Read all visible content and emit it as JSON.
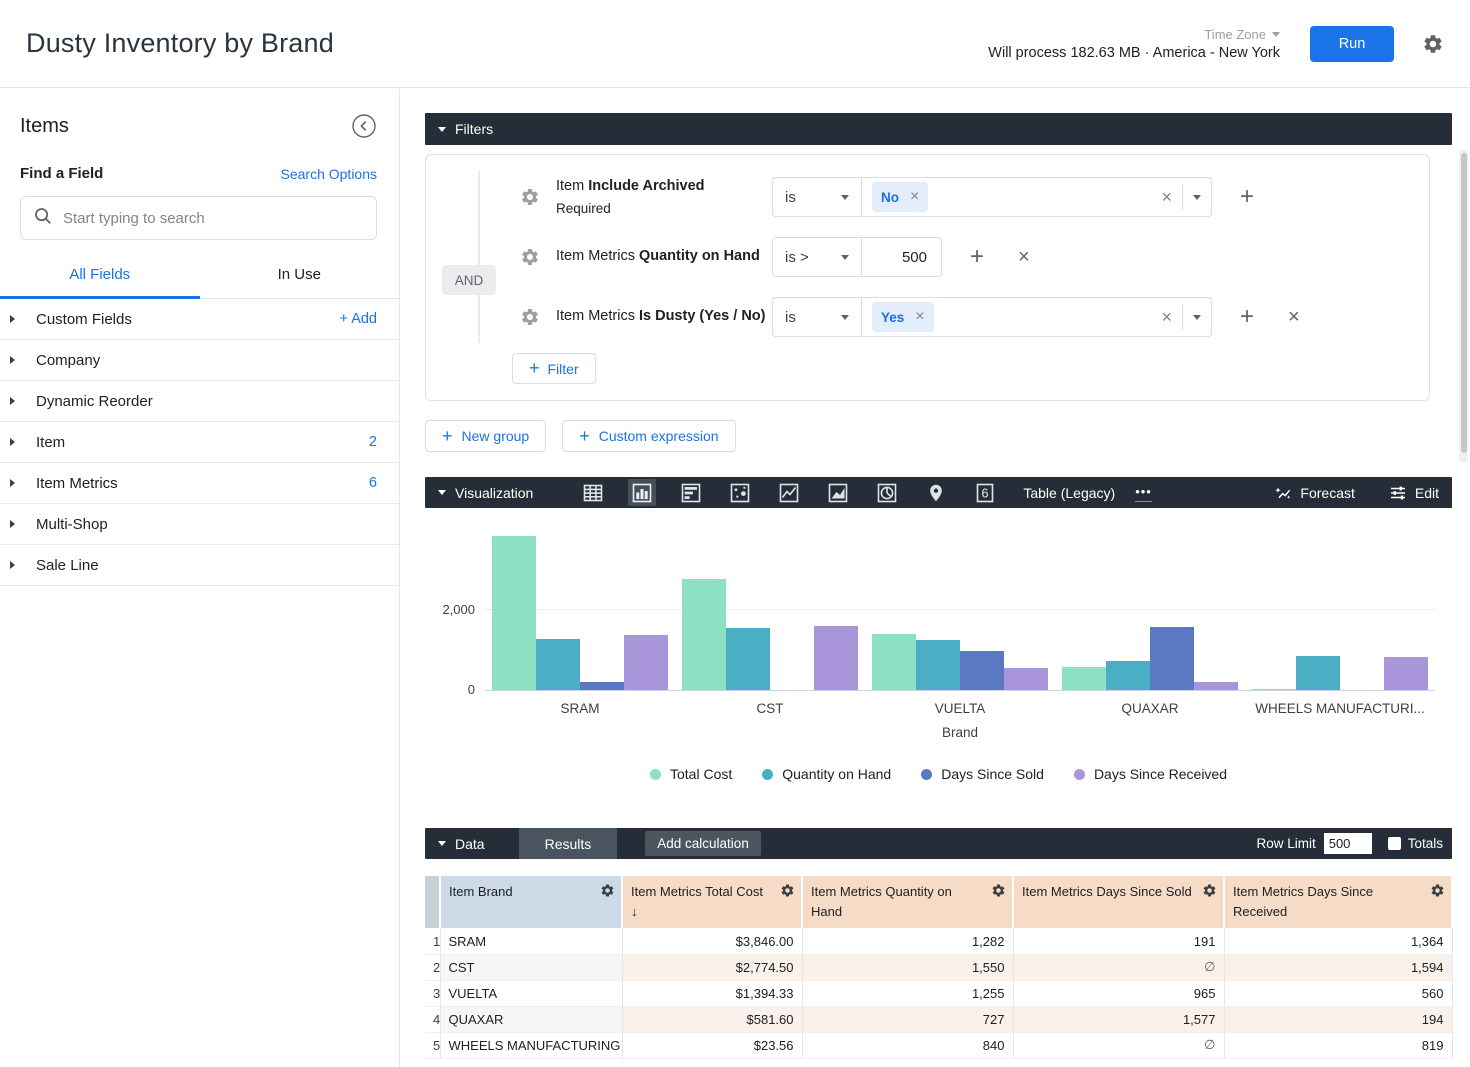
{
  "header": {
    "title": "Dusty Inventory by Brand",
    "time_zone_label": "Time Zone",
    "process_text": "Will process 182.63 MB · America - New York",
    "run_label": "Run"
  },
  "sidebar": {
    "title": "Items",
    "find_a_field_label": "Find a Field",
    "search_options_label": "Search Options",
    "search_placeholder": "Start typing to search",
    "tabs": {
      "all_fields": "All Fields",
      "in_use": "In Use"
    },
    "groups": [
      {
        "label": "Custom Fields",
        "action": "+ Add"
      },
      {
        "label": "Company"
      },
      {
        "label": "Dynamic Reorder"
      },
      {
        "label": "Item",
        "count": "2"
      },
      {
        "label": "Item Metrics",
        "count": "6"
      },
      {
        "label": "Multi-Shop"
      },
      {
        "label": "Sale Line"
      }
    ]
  },
  "filters": {
    "section_label": "Filters",
    "and_label": "AND",
    "rows": [
      {
        "field_plain": "Item",
        "field_bold": "Include Archived",
        "note": "Required",
        "operator": "is",
        "chip": "No"
      },
      {
        "field_plain": "Item Metrics",
        "field_bold": "Quantity on Hand",
        "operator": "is >",
        "value": "500"
      },
      {
        "field_plain": "Item Metrics",
        "field_bold": "Is Dusty (Yes / No)",
        "operator": "is",
        "chip": "Yes"
      }
    ],
    "add_filter_label": "Filter",
    "new_group_label": "New group",
    "custom_expression_label": "Custom expression"
  },
  "visualization": {
    "section_label": "Visualization",
    "icons": [
      "table-grid",
      "column-chart",
      "bar-chart",
      "scatter-chart",
      "line-chart",
      "area-chart",
      "pie-chart",
      "map-pin",
      "single-value"
    ],
    "selected_icon": "column-chart",
    "type_label": "Table (Legacy)",
    "more_label": "•••",
    "forecast_label": "Forecast",
    "edit_label": "Edit"
  },
  "chart_data": {
    "type": "bar",
    "title": "",
    "categories": [
      "SRAM",
      "CST",
      "VUELTA",
      "QUAXAR",
      "WHEELS MANUFACTURING"
    ],
    "category_display": [
      "SRAM",
      "CST",
      "VUELTA",
      "QUAXAR",
      "WHEELS MANUFACTURI..."
    ],
    "series": [
      {
        "name": "Total Cost",
        "color": "#8de1c3",
        "values": [
          3846.0,
          2774.5,
          1394.33,
          581.6,
          23.56
        ]
      },
      {
        "name": "Quantity on Hand",
        "color": "#4aafc5",
        "values": [
          1282,
          1550,
          1255,
          727,
          840
        ]
      },
      {
        "name": "Days Since Sold",
        "color": "#5b79c2",
        "values": [
          191,
          null,
          965,
          1577,
          null
        ]
      },
      {
        "name": "Days Since Received",
        "color": "#a995da",
        "values": [
          1364,
          1594,
          560,
          194,
          819
        ]
      }
    ],
    "xlabel": "Brand",
    "ylabel": "",
    "yticks": [
      0,
      2000
    ],
    "ylim": [
      0,
      4575
    ],
    "grid": true,
    "legend_position": "bottom"
  },
  "data_section": {
    "section_label": "Data",
    "results_label": "Results",
    "add_calculation_label": "Add calculation",
    "row_limit_label": "Row Limit",
    "row_limit_value": "500",
    "totals_label": "Totals",
    "table": {
      "columns": [
        {
          "label": "Item Brand",
          "sort": "",
          "type": "dimension"
        },
        {
          "label": "Item Metrics Total Cost",
          "sort": "↓",
          "type": "measure"
        },
        {
          "label": "Item Metrics Quantity on Hand",
          "sort": "",
          "type": "measure"
        },
        {
          "label": "Item Metrics Days Since Sold",
          "sort": "",
          "type": "measure"
        },
        {
          "label": "Item Metrics Days Since Received",
          "sort": "",
          "type": "measure"
        }
      ],
      "rows": [
        [
          "SRAM",
          "$3,846.00",
          "1,282",
          "191",
          "1,364"
        ],
        [
          "CST",
          "$2,774.50",
          "1,550",
          "∅",
          "1,594"
        ],
        [
          "VUELTA",
          "$1,394.33",
          "1,255",
          "965",
          "560"
        ],
        [
          "QUAXAR",
          "$581.60",
          "727",
          "1,577",
          "194"
        ],
        [
          "WHEELS MANUFACTURING",
          "$23.56",
          "840",
          "∅",
          "819"
        ]
      ]
    }
  },
  "colors": {
    "accent_blue": "#1a73e8",
    "dark_bar": "#252e38",
    "dim_header_bg": "#ccd9e6",
    "measure_header_bg": "#f6dcc7",
    "chip_bg": "#e4edfb"
  }
}
